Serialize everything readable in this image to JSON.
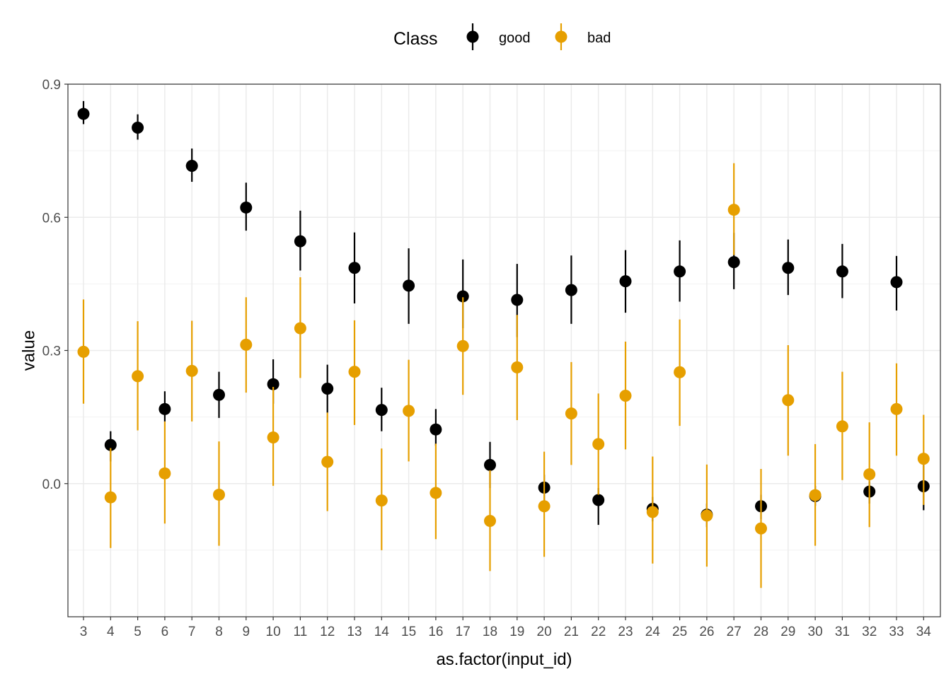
{
  "chart_data": {
    "type": "scatter",
    "title": "",
    "xlabel": "as.factor(input_id)",
    "ylabel": "value",
    "categories": [
      "3",
      "4",
      "5",
      "6",
      "7",
      "8",
      "9",
      "10",
      "11",
      "12",
      "13",
      "14",
      "15",
      "16",
      "17",
      "18",
      "19",
      "20",
      "21",
      "22",
      "23",
      "24",
      "25",
      "26",
      "27",
      "28",
      "29",
      "30",
      "31",
      "32",
      "33",
      "34"
    ],
    "ylim": [
      -0.3,
      0.9
    ],
    "yticks": [
      0.0,
      0.3,
      0.6,
      0.9
    ],
    "yticklabels": [
      "0.0",
      "0.3",
      "0.6",
      "0.9"
    ],
    "grid": true,
    "legend": {
      "title": "Class",
      "position": "top"
    },
    "series": [
      {
        "name": "good",
        "color": "#000000",
        "values": [
          0.833,
          0.087,
          0.802,
          0.168,
          0.716,
          0.2,
          0.622,
          0.224,
          0.546,
          0.214,
          0.486,
          0.166,
          0.446,
          0.122,
          0.422,
          0.042,
          0.414,
          -0.009,
          0.436,
          -0.037,
          0.456,
          -0.057,
          0.478,
          -0.07,
          0.499,
          -0.051,
          0.486,
          -0.028,
          0.478,
          -0.018,
          0.454,
          -0.006
        ],
        "lower": [
          0.81,
          0.05,
          0.775,
          0.14,
          0.68,
          0.148,
          0.57,
          0.18,
          0.48,
          0.16,
          0.406,
          0.118,
          0.36,
          0.085,
          0.35,
          -0.01,
          0.33,
          -0.04,
          0.36,
          -0.093,
          0.385,
          -0.085,
          0.41,
          -0.098,
          0.438,
          -0.08,
          0.425,
          -0.05,
          0.418,
          -0.045,
          0.39,
          -0.06
        ],
        "upper": [
          0.862,
          0.118,
          0.832,
          0.208,
          0.755,
          0.252,
          0.678,
          0.28,
          0.615,
          0.268,
          0.566,
          0.216,
          0.53,
          0.168,
          0.505,
          0.094,
          0.495,
          0.02,
          0.514,
          -0.01,
          0.526,
          -0.03,
          0.548,
          -0.045,
          0.565,
          -0.025,
          0.55,
          -0.005,
          0.54,
          0.005,
          0.513,
          0.048
        ]
      },
      {
        "name": "bad",
        "color": "#E69F00",
        "values": [
          0.297,
          -0.031,
          0.242,
          0.023,
          0.254,
          -0.025,
          0.313,
          0.104,
          0.35,
          0.049,
          0.252,
          -0.038,
          0.164,
          -0.021,
          0.31,
          -0.084,
          0.262,
          -0.051,
          0.158,
          0.089,
          0.198,
          -0.064,
          0.251,
          -0.072,
          0.617,
          -0.101,
          0.188,
          -0.026,
          0.129,
          0.021,
          0.168,
          0.056
        ],
        "lower": [
          0.18,
          -0.145,
          0.12,
          -0.09,
          0.14,
          -0.14,
          0.205,
          -0.005,
          0.238,
          -0.062,
          0.132,
          -0.15,
          0.05,
          -0.125,
          0.2,
          -0.197,
          0.143,
          -0.165,
          0.042,
          -0.025,
          0.077,
          -0.18,
          0.13,
          -0.187,
          0.515,
          -0.235,
          0.063,
          -0.14,
          0.008,
          -0.098,
          0.063,
          -0.048
        ],
        "upper": [
          0.415,
          0.08,
          0.366,
          0.14,
          0.367,
          0.095,
          0.42,
          0.218,
          0.465,
          0.16,
          0.368,
          0.079,
          0.279,
          0.09,
          0.42,
          0.03,
          0.38,
          0.072,
          0.274,
          0.203,
          0.32,
          0.061,
          0.37,
          0.043,
          0.722,
          0.033,
          0.312,
          0.089,
          0.252,
          0.138,
          0.271,
          0.155
        ]
      }
    ]
  }
}
